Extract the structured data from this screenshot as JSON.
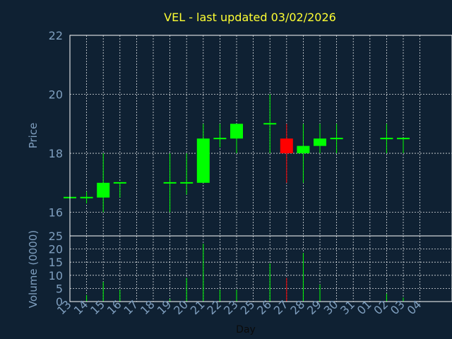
{
  "chart_data": {
    "type": "candlestick",
    "title": "VEL - last updated 03/02/2026",
    "xlabel": "Day",
    "x_ticks": [
      "13",
      "14",
      "15",
      "16",
      "17",
      "18",
      "19",
      "20",
      "21",
      "22",
      "23",
      "25",
      "26",
      "27",
      "28",
      "29",
      "30",
      "31",
      "01",
      "02",
      "03",
      "04"
    ],
    "colors": {
      "up": "#00ff00",
      "down": "#ff0000",
      "background": "#0f2133",
      "axis_text": "#7f9fbf",
      "title": "#ffff33"
    },
    "price_panel": {
      "ylabel": "Price",
      "ylim": [
        15.2,
        22
      ],
      "yticks": [
        16,
        18,
        20,
        22
      ],
      "grid": true,
      "candles": [
        {
          "day": "13",
          "open": 16.5,
          "high": 16.5,
          "low": 16.5,
          "close": 16.5
        },
        {
          "day": "14",
          "open": 16.5,
          "high": 16.7,
          "low": 16.3,
          "close": 16.5
        },
        {
          "day": "15",
          "open": 16.5,
          "high": 18.0,
          "low": 16.0,
          "close": 17.0
        },
        {
          "day": "16",
          "open": 17.0,
          "high": 17.0,
          "low": 16.5,
          "close": 17.0
        },
        {
          "day": "19",
          "open": 17.0,
          "high": 18.0,
          "low": 16.0,
          "close": 17.0
        },
        {
          "day": "20",
          "open": 17.0,
          "high": 18.0,
          "low": 16.6,
          "close": 17.0
        },
        {
          "day": "21",
          "open": 17.0,
          "high": 19.0,
          "low": 17.0,
          "close": 18.5
        },
        {
          "day": "22",
          "open": 18.5,
          "high": 19.0,
          "low": 18.2,
          "close": 18.5
        },
        {
          "day": "23",
          "open": 18.5,
          "high": 19.0,
          "low": 18.0,
          "close": 19.0
        },
        {
          "day": "26",
          "open": 19.0,
          "high": 20.0,
          "low": 18.0,
          "close": 19.0
        },
        {
          "day": "27",
          "open": 18.5,
          "high": 19.0,
          "low": 17.0,
          "close": 18.0
        },
        {
          "day": "28",
          "open": 18.0,
          "high": 19.0,
          "low": 17.0,
          "close": 18.25
        },
        {
          "day": "29",
          "open": 18.25,
          "high": 19.0,
          "low": 18.0,
          "close": 18.5
        },
        {
          "day": "30",
          "open": 18.5,
          "high": 19.0,
          "low": 18.0,
          "close": 18.5
        },
        {
          "day": "02",
          "open": 18.5,
          "high": 19.0,
          "low": 18.0,
          "close": 18.5
        },
        {
          "day": "03",
          "open": 18.5,
          "high": 18.5,
          "low": 18.0,
          "close": 18.5
        }
      ]
    },
    "volume_panel": {
      "ylabel": "Volume (0000)",
      "ylim": [
        0,
        25
      ],
      "yticks": [
        0,
        5,
        10,
        15,
        20,
        25
      ],
      "bars": [
        {
          "day": "13",
          "value": 0.5,
          "direction": "up"
        },
        {
          "day": "14",
          "value": 2.5,
          "direction": "up"
        },
        {
          "day": "15",
          "value": 7.5,
          "direction": "up"
        },
        {
          "day": "16",
          "value": 4.5,
          "direction": "up"
        },
        {
          "day": "19",
          "value": 1.0,
          "direction": "up"
        },
        {
          "day": "20",
          "value": 9.0,
          "direction": "up"
        },
        {
          "day": "21",
          "value": 22.0,
          "direction": "up"
        },
        {
          "day": "22",
          "value": 4.5,
          "direction": "up"
        },
        {
          "day": "23",
          "value": 4.5,
          "direction": "up"
        },
        {
          "day": "26",
          "value": 14.5,
          "direction": "up"
        },
        {
          "day": "27",
          "value": 9.0,
          "direction": "down"
        },
        {
          "day": "28",
          "value": 18.5,
          "direction": "up"
        },
        {
          "day": "29",
          "value": 6.5,
          "direction": "up"
        },
        {
          "day": "02",
          "value": 3.0,
          "direction": "up"
        },
        {
          "day": "03",
          "value": 1.5,
          "direction": "up"
        }
      ]
    }
  }
}
